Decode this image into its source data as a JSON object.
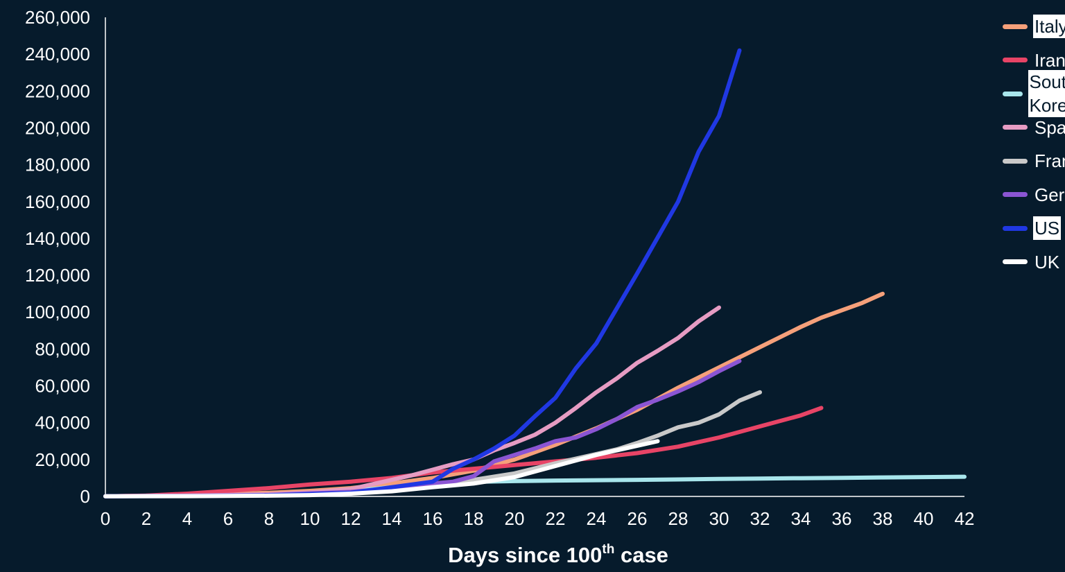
{
  "chart_data": {
    "type": "line",
    "xlabel": {
      "before": "Days since 100",
      "sup": "th",
      "after": " case"
    },
    "xlim": [
      0,
      42
    ],
    "ylim": [
      0,
      260000
    ],
    "x_ticks": [
      "0",
      "2",
      "4",
      "6",
      "8",
      "10",
      "12",
      "14",
      "16",
      "18",
      "20",
      "22",
      "24",
      "26",
      "28",
      "30",
      "32",
      "34",
      "36",
      "38",
      "40",
      "42"
    ],
    "y_ticks": [
      "0",
      "20,000",
      "40,000",
      "60,000",
      "80,000",
      "100,000",
      "120,000",
      "140,000",
      "160,000",
      "180,000",
      "200,000",
      "220,000",
      "240,000",
      "260,000"
    ],
    "grid": false,
    "legend_position": "right",
    "series": [
      {
        "name": "Italy",
        "color": "#f5a07a",
        "highlight": true,
        "x": [
          0,
          4,
          8,
          10,
          12,
          14,
          16,
          18,
          20,
          22,
          24,
          26,
          28,
          30,
          32,
          34,
          35,
          36,
          37,
          38
        ],
        "y": [
          100,
          700,
          2000,
          3000,
          4500,
          7000,
          10000,
          14000,
          20000,
          28000,
          37000,
          47000,
          59000,
          70000,
          81000,
          92000,
          97000,
          101000,
          105000,
          110000
        ]
      },
      {
        "name": "Iran",
        "color": "#e84466",
        "highlight": false,
        "x": [
          0,
          2,
          4,
          6,
          8,
          10,
          12,
          14,
          16,
          18,
          20,
          22,
          24,
          26,
          28,
          30,
          32,
          34,
          35
        ],
        "y": [
          100,
          500,
          1500,
          3000,
          4500,
          6500,
          8000,
          10000,
          13000,
          15000,
          17000,
          19000,
          21000,
          23500,
          27000,
          32000,
          38000,
          44000,
          48000
        ]
      },
      {
        "name": "South Korea",
        "color": "#a8e6ec",
        "highlight": true,
        "x": [
          0,
          4,
          8,
          10,
          12,
          14,
          16,
          18,
          20,
          22,
          24,
          26,
          28,
          30,
          32,
          34,
          36,
          38,
          40,
          42
        ],
        "y": [
          100,
          400,
          800,
          1500,
          3000,
          5000,
          7000,
          7900,
          8300,
          8600,
          8800,
          9000,
          9200,
          9500,
          9700,
          9900,
          10100,
          10300,
          10500,
          10700
        ]
      },
      {
        "name": "Spain",
        "color": "#e69cc3",
        "highlight": false,
        "x": [
          0,
          4,
          8,
          10,
          12,
          14,
          15,
          16,
          17,
          18,
          19,
          20,
          21,
          22,
          23,
          24,
          25,
          26,
          27,
          28,
          29,
          30
        ],
        "y": [
          100,
          400,
          1200,
          2200,
          4000,
          9000,
          11500,
          14500,
          17500,
          20000,
          25000,
          29000,
          33500,
          40000,
          48000,
          56500,
          64000,
          72500,
          79000,
          86000,
          95000,
          102500
        ]
      },
      {
        "name": "France",
        "color": "#c9c9c9",
        "highlight": false,
        "x": [
          0,
          4,
          8,
          12,
          14,
          16,
          18,
          20,
          22,
          24,
          25,
          26,
          27,
          28,
          29,
          30,
          31,
          32
        ],
        "y": [
          100,
          300,
          800,
          2500,
          4500,
          6500,
          9000,
          12500,
          18000,
          23000,
          25500,
          29000,
          33000,
          37500,
          40000,
          44500,
          52000,
          56500
        ]
      },
      {
        "name": "Germany",
        "color": "#8b55d3",
        "highlight": false,
        "x": [
          0,
          4,
          8,
          12,
          14,
          16,
          17,
          18,
          19,
          20,
          21,
          22,
          23,
          24,
          25,
          26,
          27,
          28,
          29,
          30,
          31
        ],
        "y": [
          100,
          300,
          800,
          2500,
          4500,
          7000,
          8000,
          11000,
          19000,
          22500,
          26000,
          30000,
          32000,
          36500,
          42000,
          48500,
          52500,
          57000,
          62000,
          68000,
          73500
        ]
      },
      {
        "name": "US",
        "color": "#2038e3",
        "highlight": true,
        "x": [
          0,
          4,
          8,
          12,
          14,
          16,
          17,
          18,
          19,
          20,
          21,
          22,
          23,
          24,
          25,
          26,
          27,
          28,
          29,
          30,
          31
        ],
        "y": [
          100,
          200,
          600,
          2000,
          5000,
          8000,
          15000,
          20000,
          26000,
          33000,
          43500,
          53500,
          69500,
          83000,
          102000,
          121000,
          140500,
          160000,
          187000,
          206500,
          242000
        ]
      },
      {
        "name": "UK",
        "color": "#ffffff",
        "highlight": false,
        "x": [
          0,
          4,
          8,
          10,
          12,
          14,
          16,
          18,
          20,
          22,
          24,
          25,
          26,
          27
        ],
        "y": [
          100,
          150,
          400,
          700,
          1500,
          2800,
          5000,
          7000,
          10500,
          16500,
          22500,
          25000,
          27500,
          30000
        ]
      }
    ]
  }
}
